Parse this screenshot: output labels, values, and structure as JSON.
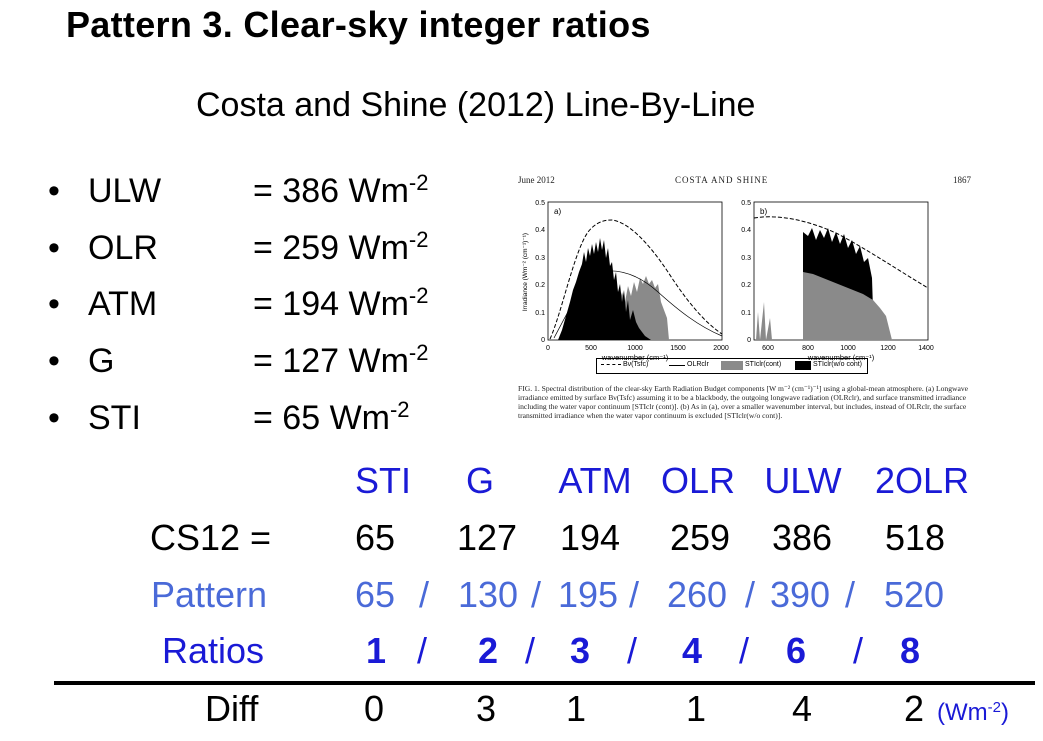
{
  "title": "Pattern 3.  Clear-sky integer ratios",
  "subtitle": "Costa and Shine (2012) Line-By-Line",
  "bullets": [
    {
      "label": "ULW",
      "value": "= 386 Wm",
      "exp": "-2"
    },
    {
      "label": "OLR",
      "value": "= 259 Wm",
      "exp": "-2"
    },
    {
      "label": "ATM",
      "value": "= 194 Wm",
      "exp": "-2"
    },
    {
      "label": "G",
      "value": "= 127 Wm",
      "exp": "-2"
    },
    {
      "label": "STI",
      "value": "=  65 Wm",
      "exp": "-2"
    }
  ],
  "figure": {
    "header_left": "June 2012",
    "header_center": "COSTA AND SHINE",
    "header_right": "1867",
    "panel_a_label": "a)",
    "panel_b_label": "b)",
    "ylabel": "Irradiance (Wm⁻² (cm⁻¹)⁻¹)",
    "xlabel": "wavenumber (cm⁻¹)",
    "panel_a_xticks": [
      "0",
      "500",
      "1000",
      "1500",
      "2000"
    ],
    "panel_b_xticks": [
      "600",
      "800",
      "1000",
      "1200",
      "1400"
    ],
    "yticks": [
      "0",
      "0.1",
      "0.2",
      "0.3",
      "0.4",
      "0.5"
    ],
    "legend": [
      "Bν(Tsfc)",
      "OLRclr",
      "STIclr(cont)",
      "STIclr(w/o cont)"
    ],
    "caption": "FIG. 1. Spectral distribution of the clear-sky Earth Radiation Budget components [W m⁻² (cm⁻¹)⁻¹] using a global-mean atmosphere. (a) Longwave irradiance emitted by surface Bν(Tsfc) assuming it to be a blackbody, the outgoing longwave radiation (OLRclr), and surface transmitted irradiance including the water vapor continuum [STIclr (cont)]. (b) As in (a), over a smaller wavenumber interval, but includes, instead of OLRclr, the surface transmitted irradiance when the water vapor continuum is excluded [STIclr(w/o cont)]."
  },
  "table": {
    "headers": [
      "STI",
      "G",
      "ATM",
      "OLR",
      "ULW",
      "2OLR"
    ],
    "cs12_label": "CS12 =",
    "cs12": [
      "65",
      "127",
      "194",
      "259",
      "386",
      "518"
    ],
    "pattern_label": "Pattern",
    "pattern": [
      "65",
      "/",
      "130",
      "/",
      "195",
      "/",
      "260",
      "/",
      "390",
      "/",
      "520"
    ],
    "ratios_label": "Ratios",
    "ratios": [
      "1",
      "/",
      "2",
      "/",
      "3",
      "/",
      "4",
      "/",
      "6",
      "/",
      "8"
    ],
    "diff_label": "Diff",
    "diff": [
      "0",
      "3",
      "1",
      "1",
      "4",
      "2"
    ],
    "unit": "(Wm",
    "unit_exp": "-2",
    "unit_close": ")"
  },
  "colors": {
    "header_blue": "#1a1ad6",
    "pattern_blue": "#4a6ad8"
  }
}
